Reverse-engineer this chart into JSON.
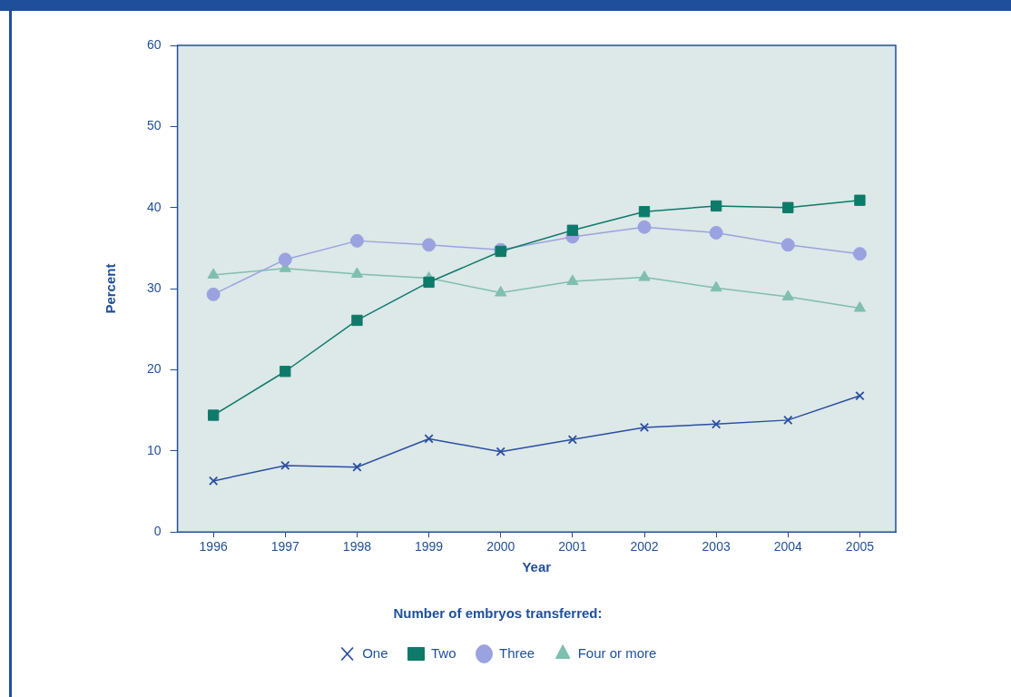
{
  "chart_data": {
    "type": "line",
    "xlabel": "Year",
    "ylabel": "Percent",
    "legend_title": "Number of embryos transferred:",
    "categories": [
      "1996",
      "1997",
      "1998",
      "1999",
      "2000",
      "2001",
      "2002",
      "2003",
      "2004",
      "2005"
    ],
    "series": [
      {
        "name": "One",
        "color": "#2a4fa0",
        "marker": "cross",
        "values": [
          6.3,
          8.2,
          8.0,
          11.5,
          9.9,
          11.4,
          12.9,
          13.3,
          13.8,
          16.8
        ]
      },
      {
        "name": "Two",
        "color": "#0e7a6a",
        "marker": "square",
        "values": [
          14.4,
          19.8,
          26.1,
          30.8,
          34.6,
          37.2,
          39.5,
          40.2,
          40.0,
          40.9
        ]
      },
      {
        "name": "Three",
        "color": "#9aa3e0",
        "marker": "circle",
        "values": [
          29.3,
          33.6,
          35.9,
          35.4,
          34.8,
          36.4,
          37.6,
          36.9,
          35.4,
          34.3
        ]
      },
      {
        "name": "Four or more",
        "color": "#7fbfb0",
        "marker": "triangle",
        "values": [
          31.7,
          32.5,
          31.8,
          31.3,
          29.5,
          30.9,
          31.4,
          30.1,
          29.0,
          27.6
        ]
      }
    ],
    "ylim": [
      0,
      60
    ],
    "yticks": [
      0,
      10,
      20,
      30,
      40,
      50,
      60
    ],
    "grid": false,
    "legend": "bottom"
  }
}
